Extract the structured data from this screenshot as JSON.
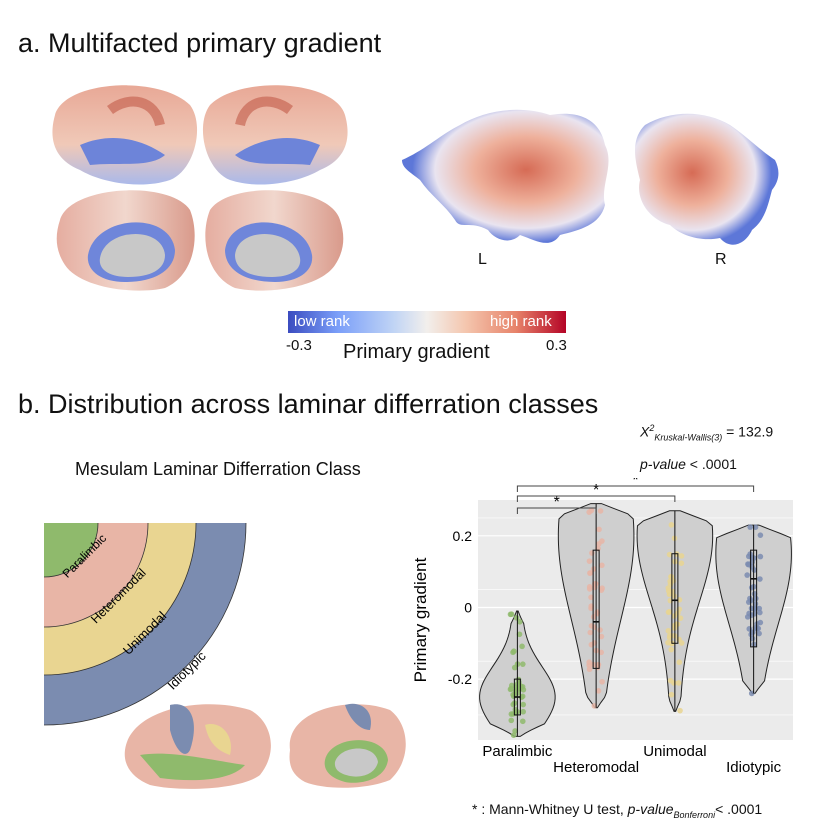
{
  "panel_a": {
    "title": "a. Multifacted primary gradient",
    "hemi_left": "L",
    "hemi_right": "R",
    "colorbar": {
      "low_text": "low rank",
      "high_text": "high rank",
      "min": "-0.3",
      "max": "0.3",
      "label": "Primary gradient"
    }
  },
  "panel_b": {
    "title": "b. Distribution across laminar differration classes",
    "diagram_title": "Mesulam Laminar Differration Class",
    "classes": [
      {
        "name": "Paralimbic",
        "color": "#8fba6c"
      },
      {
        "name": "Heteromodal",
        "color": "#e8b5a6"
      },
      {
        "name": "Unimodal",
        "color": "#e9d591"
      },
      {
        "name": "Idiotypic",
        "color": "#7b8cb0"
      }
    ],
    "stats": {
      "chi_sym": "X",
      "chi_sup": "2",
      "chi_sub": "Kruskal-Wallis(3)",
      "chi_val": " = 132.9",
      "p_text": "p-value",
      "p_val": " < .0001"
    },
    "footnote": {
      "star": "*",
      "text": " : Mann-Whitney U test, ",
      "p": "p-value",
      "p_sub": "Bonferroni",
      "tail": "< .0001"
    }
  },
  "chart_data": {
    "type": "violin",
    "ylabel": "Primary gradient",
    "yticks": [
      "0.2",
      "0",
      "-0.2"
    ],
    "ytick_values": [
      0.2,
      0,
      -0.2
    ],
    "ylim": [
      -0.37,
      0.3
    ],
    "categories": [
      "Paralimbic",
      "Heteromodal",
      "Unimodal",
      "Idiotypic"
    ],
    "colors": [
      "#8fba6c",
      "#e8b5a6",
      "#e9d591",
      "#7b8cb0"
    ],
    "series": [
      {
        "name": "Paralimbic",
        "min": -0.36,
        "q1": -0.3,
        "median": -0.25,
        "q3": -0.2,
        "max": -0.01,
        "mode": -0.25
      },
      {
        "name": "Heteromodal",
        "min": -0.28,
        "q1": -0.17,
        "median": -0.04,
        "q3": 0.16,
        "max": 0.29,
        "mode": 0.2
      },
      {
        "name": "Unimodal",
        "min": -0.29,
        "q1": -0.1,
        "median": 0.02,
        "q3": 0.15,
        "max": 0.27,
        "mode": 0.2
      },
      {
        "name": "Idiotypic",
        "min": -0.24,
        "q1": -0.11,
        "median": 0.08,
        "q3": 0.16,
        "max": 0.23,
        "mode": 0.15
      }
    ],
    "significance": [
      {
        "from": "Paralimbic",
        "to": "Heteromodal",
        "label": "*"
      },
      {
        "from": "Paralimbic",
        "to": "Unimodal",
        "label": "*"
      },
      {
        "from": "Paralimbic",
        "to": "Idiotypic",
        "label": "*"
      }
    ],
    "grid": true
  }
}
